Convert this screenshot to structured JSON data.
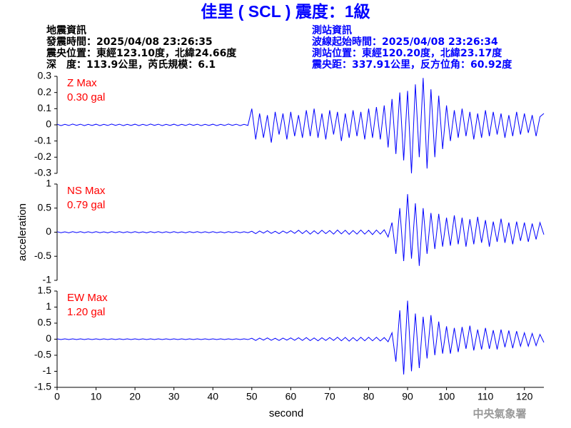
{
  "header": {
    "title": "佳里 ( SCL ) 震度：1級",
    "left": [
      "地震資訊",
      "發震時間：2025/04/08 23:26:35",
      "震央位置：東經123.10度，北緯24.66度",
      "深　度：113.9公里，芮氏規模：6.1"
    ],
    "right": [
      "測站資訊",
      "波線起始時間：2025/04/08 23:26:34",
      "測站位置：東經120.20度，北緯23.17度",
      "震央距：337.91公里，反方位角：60.92度"
    ],
    "footer": "中央氣象署"
  },
  "chart_data": [
    {
      "type": "line",
      "color": "#0000ff",
      "annotations": [
        "Z Max",
        "0.30 gal"
      ],
      "xlim": [
        0,
        125
      ],
      "ylim": [
        -0.3,
        0.3
      ],
      "yticks": [
        -0.3,
        -0.2,
        -0.1,
        0,
        0.1,
        0.2,
        0.3
      ],
      "x": [
        0,
        1,
        2,
        3,
        4,
        5,
        6,
        7,
        8,
        9,
        10,
        11,
        12,
        13,
        14,
        15,
        16,
        17,
        18,
        19,
        20,
        21,
        22,
        23,
        24,
        25,
        26,
        27,
        28,
        29,
        30,
        31,
        32,
        33,
        34,
        35,
        36,
        37,
        38,
        39,
        40,
        41,
        42,
        43,
        44,
        45,
        46,
        47,
        48,
        49,
        50,
        51,
        52,
        53,
        54,
        55,
        56,
        57,
        58,
        59,
        60,
        61,
        62,
        63,
        64,
        65,
        66,
        67,
        68,
        69,
        70,
        71,
        72,
        73,
        74,
        75,
        76,
        77,
        78,
        79,
        80,
        81,
        82,
        83,
        84,
        85,
        86,
        87,
        88,
        89,
        90,
        91,
        92,
        93,
        94,
        95,
        96,
        97,
        98,
        99,
        100,
        101,
        102,
        103,
        104,
        105,
        106,
        107,
        108,
        109,
        110,
        111,
        112,
        113,
        114,
        115,
        116,
        117,
        118,
        119,
        120,
        121,
        122,
        123,
        124,
        125
      ],
      "values": [
        0.004,
        -0.005,
        0.003,
        -0.004,
        0.005,
        -0.003,
        0.004,
        -0.005,
        0.003,
        -0.004,
        0.004,
        -0.005,
        0.003,
        -0.004,
        0.005,
        -0.003,
        0.004,
        -0.005,
        0.003,
        -0.004,
        0.004,
        -0.005,
        0.003,
        -0.004,
        0.005,
        -0.003,
        0.004,
        -0.005,
        0.003,
        -0.004,
        0.004,
        -0.005,
        0.003,
        -0.004,
        0.005,
        -0.003,
        0.004,
        -0.005,
        0.003,
        -0.004,
        0.004,
        -0.005,
        0.003,
        -0.004,
        0.005,
        -0.003,
        0.004,
        -0.005,
        0.003,
        -0.004,
        0.1,
        -0.09,
        0.07,
        -0.08,
        0.06,
        -0.11,
        0.08,
        -0.06,
        0.07,
        -0.09,
        0.08,
        -0.07,
        0.06,
        -0.08,
        0.09,
        -0.07,
        0.1,
        -0.08,
        0.07,
        -0.09,
        0.09,
        -0.06,
        0.08,
        -0.1,
        0.07,
        -0.08,
        0.09,
        -0.07,
        0.08,
        -0.09,
        0.1,
        -0.08,
        0.11,
        -0.09,
        0.12,
        -0.14,
        0.16,
        -0.18,
        0.2,
        -0.22,
        0.21,
        -0.3,
        0.25,
        -0.2,
        0.29,
        -0.27,
        0.22,
        -0.2,
        0.18,
        -0.15,
        0.12,
        -0.1,
        0.09,
        -0.08,
        0.1,
        -0.07,
        0.08,
        -0.09,
        0.07,
        -0.08,
        0.09,
        -0.07,
        0.08,
        -0.06,
        0.07,
        -0.08,
        0.06,
        -0.07,
        0.08,
        -0.06,
        0.07,
        -0.05,
        0.06,
        -0.07,
        0.05,
        0.07
      ]
    },
    {
      "type": "line",
      "color": "#0000ff",
      "annotations": [
        "NS Max",
        "0.79 gal"
      ],
      "ylabel": "acceleration",
      "xlim": [
        0,
        125
      ],
      "ylim": [
        -1,
        1
      ],
      "yticks": [
        -1,
        -0.5,
        0,
        0.5,
        1
      ],
      "x": [
        0,
        1,
        2,
        3,
        4,
        5,
        6,
        7,
        8,
        9,
        10,
        11,
        12,
        13,
        14,
        15,
        16,
        17,
        18,
        19,
        20,
        21,
        22,
        23,
        24,
        25,
        26,
        27,
        28,
        29,
        30,
        31,
        32,
        33,
        34,
        35,
        36,
        37,
        38,
        39,
        40,
        41,
        42,
        43,
        44,
        45,
        46,
        47,
        48,
        49,
        50,
        51,
        52,
        53,
        54,
        55,
        56,
        57,
        58,
        59,
        60,
        61,
        62,
        63,
        64,
        65,
        66,
        67,
        68,
        69,
        70,
        71,
        72,
        73,
        74,
        75,
        76,
        77,
        78,
        79,
        80,
        81,
        82,
        83,
        84,
        85,
        86,
        87,
        88,
        89,
        90,
        91,
        92,
        93,
        94,
        95,
        96,
        97,
        98,
        99,
        100,
        101,
        102,
        103,
        104,
        105,
        106,
        107,
        108,
        109,
        110,
        111,
        112,
        113,
        114,
        115,
        116,
        117,
        118,
        119,
        120,
        121,
        122,
        123,
        124,
        125
      ],
      "values": [
        0.01,
        -0.01,
        0.008,
        -0.012,
        0.01,
        -0.009,
        0.011,
        -0.01,
        0.009,
        -0.011,
        0.01,
        -0.01,
        0.008,
        -0.012,
        0.01,
        -0.009,
        0.011,
        -0.01,
        0.009,
        -0.011,
        0.01,
        -0.01,
        0.008,
        -0.012,
        0.01,
        -0.009,
        0.011,
        -0.01,
        0.009,
        -0.011,
        0.01,
        -0.01,
        0.008,
        -0.012,
        0.01,
        -0.009,
        0.011,
        -0.01,
        0.009,
        -0.011,
        0.01,
        -0.01,
        0.008,
        -0.012,
        0.01,
        -0.009,
        0.011,
        -0.01,
        0.009,
        -0.011,
        0.02,
        -0.03,
        0.025,
        -0.02,
        0.03,
        -0.025,
        0.02,
        -0.03,
        0.025,
        -0.02,
        0.03,
        -0.025,
        0.04,
        -0.03,
        0.035,
        -0.04,
        0.03,
        -0.035,
        0.04,
        -0.03,
        0.035,
        -0.04,
        0.045,
        -0.035,
        0.04,
        -0.045,
        0.035,
        -0.04,
        0.045,
        -0.04,
        0.04,
        -0.05,
        0.045,
        -0.04,
        0.05,
        -0.1,
        0.2,
        -0.45,
        0.5,
        -0.6,
        0.79,
        -0.55,
        0.6,
        -0.7,
        0.5,
        -0.45,
        0.4,
        -0.35,
        0.38,
        -0.3,
        0.3,
        -0.28,
        0.35,
        -0.25,
        0.3,
        -0.3,
        0.27,
        -0.25,
        0.32,
        -0.22,
        0.25,
        -0.3,
        0.22,
        -0.2,
        0.28,
        -0.22,
        0.2,
        -0.25,
        0.22,
        -0.18,
        0.2,
        -0.2,
        0.18,
        -0.15,
        0.2,
        -0.05
      ]
    },
    {
      "type": "line",
      "color": "#0000ff",
      "annotations": [
        "EW Max",
        "1.20 gal"
      ],
      "xlabel": "second",
      "xlim": [
        0,
        125
      ],
      "xticks": [
        0,
        10,
        20,
        30,
        40,
        50,
        60,
        70,
        80,
        90,
        100,
        110,
        120
      ],
      "ylim": [
        -1.5,
        1.5
      ],
      "yticks": [
        -1.5,
        -1,
        -0.5,
        0,
        0.5,
        1,
        1.5
      ],
      "x": [
        0,
        1,
        2,
        3,
        4,
        5,
        6,
        7,
        8,
        9,
        10,
        11,
        12,
        13,
        14,
        15,
        16,
        17,
        18,
        19,
        20,
        21,
        22,
        23,
        24,
        25,
        26,
        27,
        28,
        29,
        30,
        31,
        32,
        33,
        34,
        35,
        36,
        37,
        38,
        39,
        40,
        41,
        42,
        43,
        44,
        45,
        46,
        47,
        48,
        49,
        50,
        51,
        52,
        53,
        54,
        55,
        56,
        57,
        58,
        59,
        60,
        61,
        62,
        63,
        64,
        65,
        66,
        67,
        68,
        69,
        70,
        71,
        72,
        73,
        74,
        75,
        76,
        77,
        78,
        79,
        80,
        81,
        82,
        83,
        84,
        85,
        86,
        87,
        88,
        89,
        90,
        91,
        92,
        93,
        94,
        95,
        96,
        97,
        98,
        99,
        100,
        101,
        102,
        103,
        104,
        105,
        106,
        107,
        108,
        109,
        110,
        111,
        112,
        113,
        114,
        115,
        116,
        117,
        118,
        119,
        120,
        121,
        122,
        123,
        124,
        125
      ],
      "values": [
        0.012,
        -0.01,
        0.01,
        -0.012,
        0.01,
        -0.01,
        0.012,
        -0.01,
        0.01,
        -0.012,
        0.012,
        -0.01,
        0.01,
        -0.012,
        0.01,
        -0.01,
        0.012,
        -0.01,
        0.01,
        -0.012,
        0.012,
        -0.01,
        0.01,
        -0.012,
        0.01,
        -0.01,
        0.012,
        -0.01,
        0.01,
        -0.012,
        0.012,
        -0.01,
        0.01,
        -0.012,
        0.01,
        -0.01,
        0.012,
        -0.01,
        0.01,
        -0.012,
        0.012,
        -0.01,
        0.01,
        -0.012,
        0.01,
        -0.01,
        0.012,
        -0.01,
        0.01,
        -0.012,
        0.03,
        -0.04,
        0.035,
        -0.03,
        0.04,
        -0.035,
        0.03,
        -0.04,
        0.035,
        -0.03,
        0.04,
        -0.035,
        0.045,
        -0.04,
        0.05,
        -0.045,
        0.04,
        -0.05,
        0.045,
        -0.04,
        0.05,
        -0.04,
        0.06,
        -0.05,
        0.055,
        -0.06,
        0.05,
        -0.055,
        0.06,
        -0.05,
        0.06,
        -0.05,
        0.06,
        -0.055,
        0.05,
        -0.08,
        0.2,
        -0.7,
        0.9,
        -1.1,
        1.2,
        -1.0,
        0.8,
        -0.9,
        0.7,
        -0.6,
        0.75,
        -0.5,
        0.55,
        -0.45,
        0.4,
        -0.45,
        0.35,
        -0.4,
        0.38,
        -0.3,
        0.42,
        -0.35,
        0.3,
        -0.32,
        0.35,
        -0.3,
        0.28,
        -0.32,
        0.3,
        -0.25,
        0.27,
        -0.28,
        0.25,
        -0.22,
        0.2,
        -0.22,
        0.18,
        -0.2,
        0.15,
        -0.1
      ]
    }
  ]
}
